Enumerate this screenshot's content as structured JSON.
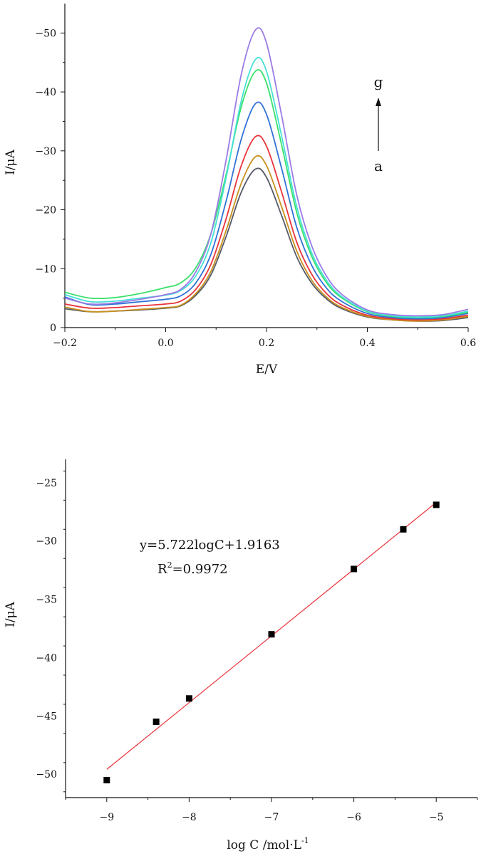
{
  "chart_data": [
    {
      "type": "line",
      "title": "",
      "xlabel": "E/V",
      "ylabel": "I/μA",
      "xlim": [
        -0.2,
        0.6
      ],
      "ylim": [
        0,
        -55
      ],
      "y_axis_inverted": true,
      "x_ticks": [
        -0.2,
        0.0,
        0.2,
        0.4,
        0.6
      ],
      "x_tick_labels": [
        "-0.2",
        "0.0",
        "0.2",
        "0.4",
        "0.6"
      ],
      "y_ticks": [
        0,
        -10,
        -20,
        -30,
        -40,
        -50
      ],
      "y_tick_labels": [
        "0",
        "-10",
        "-20",
        "-30",
        "-40",
        "-50"
      ],
      "grid": false,
      "legend": "none",
      "annotations": {
        "top": "g",
        "bottom": "a",
        "arrow": "upward from a to g"
      },
      "series": [
        {
          "color": "#555a66",
          "peak_E": 0.178,
          "peak_I": -26.9,
          "points": [
            [
              -0.2,
              -3.2
            ],
            [
              -0.15,
              -2.7
            ],
            [
              -0.1,
              -2.8
            ],
            [
              -0.05,
              -3.0
            ],
            [
              0.0,
              -3.3
            ],
            [
              0.03,
              -3.7
            ],
            [
              0.06,
              -5.5
            ],
            [
              0.09,
              -9.0
            ],
            [
              0.12,
              -15.5
            ],
            [
              0.15,
              -23.0
            ],
            [
              0.178,
              -26.9
            ],
            [
              0.2,
              -25.5
            ],
            [
              0.23,
              -19.0
            ],
            [
              0.26,
              -12.0
            ],
            [
              0.29,
              -7.5
            ],
            [
              0.32,
              -4.8
            ],
            [
              0.35,
              -3.2
            ],
            [
              0.4,
              -1.8
            ],
            [
              0.45,
              -1.3
            ],
            [
              0.5,
              -1.1
            ],
            [
              0.55,
              -1.2
            ],
            [
              0.6,
              -1.7
            ]
          ]
        },
        {
          "color": "#c8901e",
          "peak_E": 0.178,
          "peak_I": -29.0,
          "points": [
            [
              -0.2,
              -3.5
            ],
            [
              -0.15,
              -2.7
            ],
            [
              -0.1,
              -2.8
            ],
            [
              -0.05,
              -3.1
            ],
            [
              0.0,
              -3.4
            ],
            [
              0.03,
              -3.8
            ],
            [
              0.06,
              -5.8
            ],
            [
              0.09,
              -9.6
            ],
            [
              0.12,
              -16.5
            ],
            [
              0.15,
              -24.5
            ],
            [
              0.178,
              -29.0
            ],
            [
              0.2,
              -27.5
            ],
            [
              0.23,
              -20.5
            ],
            [
              0.26,
              -13.0
            ],
            [
              0.29,
              -8.0
            ],
            [
              0.32,
              -5.1
            ],
            [
              0.35,
              -3.4
            ],
            [
              0.4,
              -1.9
            ],
            [
              0.45,
              -1.3
            ],
            [
              0.5,
              -1.1
            ],
            [
              0.55,
              -1.3
            ],
            [
              0.6,
              -1.9
            ]
          ]
        },
        {
          "color": "#e8333b",
          "peak_E": 0.178,
          "peak_I": -32.4,
          "points": [
            [
              -0.2,
              -4.0
            ],
            [
              -0.15,
              -3.3
            ],
            [
              -0.1,
              -3.4
            ],
            [
              -0.05,
              -3.7
            ],
            [
              0.0,
              -4.0
            ],
            [
              0.03,
              -4.5
            ],
            [
              0.06,
              -6.5
            ],
            [
              0.09,
              -10.8
            ],
            [
              0.12,
              -18.5
            ],
            [
              0.15,
              -27.5
            ],
            [
              0.178,
              -32.4
            ],
            [
              0.2,
              -30.8
            ],
            [
              0.23,
              -23.0
            ],
            [
              0.26,
              -14.5
            ],
            [
              0.29,
              -9.0
            ],
            [
              0.32,
              -5.7
            ],
            [
              0.35,
              -3.8
            ],
            [
              0.4,
              -2.1
            ],
            [
              0.45,
              -1.5
            ],
            [
              0.5,
              -1.3
            ],
            [
              0.55,
              -1.5
            ],
            [
              0.6,
              -2.1
            ]
          ]
        },
        {
          "color": "#2f72d6",
          "peak_E": 0.178,
          "peak_I": -38.0,
          "points": [
            [
              -0.2,
              -5.2
            ],
            [
              -0.15,
              -3.9
            ],
            [
              -0.1,
              -4.0
            ],
            [
              -0.05,
              -4.4
            ],
            [
              0.0,
              -4.8
            ],
            [
              0.03,
              -5.4
            ],
            [
              0.06,
              -7.6
            ],
            [
              0.09,
              -12.5
            ],
            [
              0.12,
              -21.5
            ],
            [
              0.15,
              -32.0
            ],
            [
              0.178,
              -38.0
            ],
            [
              0.2,
              -36.2
            ],
            [
              0.23,
              -27.0
            ],
            [
              0.26,
              -17.0
            ],
            [
              0.29,
              -10.5
            ],
            [
              0.32,
              -6.6
            ],
            [
              0.35,
              -4.4
            ],
            [
              0.4,
              -2.4
            ],
            [
              0.45,
              -1.7
            ],
            [
              0.5,
              -1.5
            ],
            [
              0.55,
              -1.7
            ],
            [
              0.6,
              -2.4
            ]
          ]
        },
        {
          "color": "#39e06a",
          "peak_E": 0.178,
          "peak_I": -43.5,
          "points": [
            [
              -0.2,
              -6.0
            ],
            [
              -0.15,
              -5.0
            ],
            [
              -0.1,
              -5.1
            ],
            [
              -0.05,
              -5.8
            ],
            [
              0.0,
              -6.8
            ],
            [
              0.03,
              -7.6
            ],
            [
              0.06,
              -10.2
            ],
            [
              0.09,
              -16.0
            ],
            [
              0.12,
              -26.0
            ],
            [
              0.15,
              -37.5
            ],
            [
              0.178,
              -43.5
            ],
            [
              0.2,
              -41.5
            ],
            [
              0.23,
              -31.0
            ],
            [
              0.26,
              -19.5
            ],
            [
              0.29,
              -12.0
            ],
            [
              0.32,
              -7.5
            ],
            [
              0.35,
              -5.0
            ],
            [
              0.4,
              -2.7
            ],
            [
              0.45,
              -1.9
            ],
            [
              0.5,
              -1.7
            ],
            [
              0.55,
              -1.9
            ],
            [
              0.6,
              -2.6
            ]
          ]
        },
        {
          "color": "#45e0d6",
          "peak_E": 0.178,
          "peak_I": -45.5,
          "points": [
            [
              -0.2,
              -5.6
            ],
            [
              -0.15,
              -4.4
            ],
            [
              -0.1,
              -4.5
            ],
            [
              -0.05,
              -5.0
            ],
            [
              0.0,
              -5.5
            ],
            [
              0.03,
              -6.3
            ],
            [
              0.06,
              -8.8
            ],
            [
              0.09,
              -14.5
            ],
            [
              0.12,
              -25.5
            ],
            [
              0.15,
              -38.5
            ],
            [
              0.178,
              -45.5
            ],
            [
              0.2,
              -43.5
            ],
            [
              0.23,
              -32.5
            ],
            [
              0.26,
              -20.5
            ],
            [
              0.29,
              -12.6
            ],
            [
              0.32,
              -7.9
            ],
            [
              0.35,
              -5.2
            ],
            [
              0.4,
              -2.8
            ],
            [
              0.45,
              -2.0
            ],
            [
              0.5,
              -1.8
            ],
            [
              0.55,
              -2.0
            ],
            [
              0.6,
              -2.8
            ]
          ]
        },
        {
          "color": "#9b7be6",
          "peak_E": 0.178,
          "peak_I": -50.5,
          "points": [
            [
              -0.2,
              -5.0
            ],
            [
              -0.15,
              -4.0
            ],
            [
              -0.1,
              -4.2
            ],
            [
              -0.05,
              -4.8
            ],
            [
              0.0,
              -5.6
            ],
            [
              0.03,
              -6.5
            ],
            [
              0.06,
              -9.5
            ],
            [
              0.09,
              -16.0
            ],
            [
              0.12,
              -28.5
            ],
            [
              0.15,
              -43.0
            ],
            [
              0.178,
              -50.5
            ],
            [
              0.2,
              -48.3
            ],
            [
              0.23,
              -36.0
            ],
            [
              0.26,
              -22.5
            ],
            [
              0.29,
              -13.8
            ],
            [
              0.32,
              -8.6
            ],
            [
              0.35,
              -5.6
            ],
            [
              0.4,
              -3.0
            ],
            [
              0.45,
              -2.2
            ],
            [
              0.5,
              -2.0
            ],
            [
              0.55,
              -2.2
            ],
            [
              0.6,
              -3.1
            ]
          ]
        }
      ]
    },
    {
      "type": "scatter",
      "title": "",
      "xlabel": "log C /mol·L",
      "xlabel_superscript": "-1",
      "ylabel": "I/μA",
      "xlim": [
        -9.5,
        -4.5
      ],
      "ylim": [
        -52,
        -23
      ],
      "x_ticks": [
        -9,
        -8,
        -7,
        -6,
        -5
      ],
      "x_tick_labels": [
        "-9",
        "-8",
        "-7",
        "-6",
        "-5"
      ],
      "y_ticks": [
        -50,
        -45,
        -40,
        -35,
        -30,
        -25
      ],
      "y_tick_labels": [
        "-50",
        "-45",
        "-40",
        "-35",
        "-30",
        "-25"
      ],
      "grid": false,
      "legend": "none",
      "points": [
        {
          "x": -9.0,
          "y": -50.5
        },
        {
          "x": -8.4,
          "y": -45.5
        },
        {
          "x": -8.0,
          "y": -43.5
        },
        {
          "x": -7.0,
          "y": -38.0
        },
        {
          "x": -6.0,
          "y": -32.4
        },
        {
          "x": -5.4,
          "y": -29.0
        },
        {
          "x": -5.0,
          "y": -26.9
        }
      ],
      "point_color": "#000000",
      "fit_line": {
        "slope": 5.722,
        "intercept": 1.9163,
        "x_range": [
          -9.0,
          -5.0
        ],
        "color": "#e8333b"
      },
      "equation_text": "y=5.722logC+1.9163",
      "r2_text": "=0.9972",
      "r2_prefix": "R",
      "r2_superscript": "2"
    }
  ]
}
